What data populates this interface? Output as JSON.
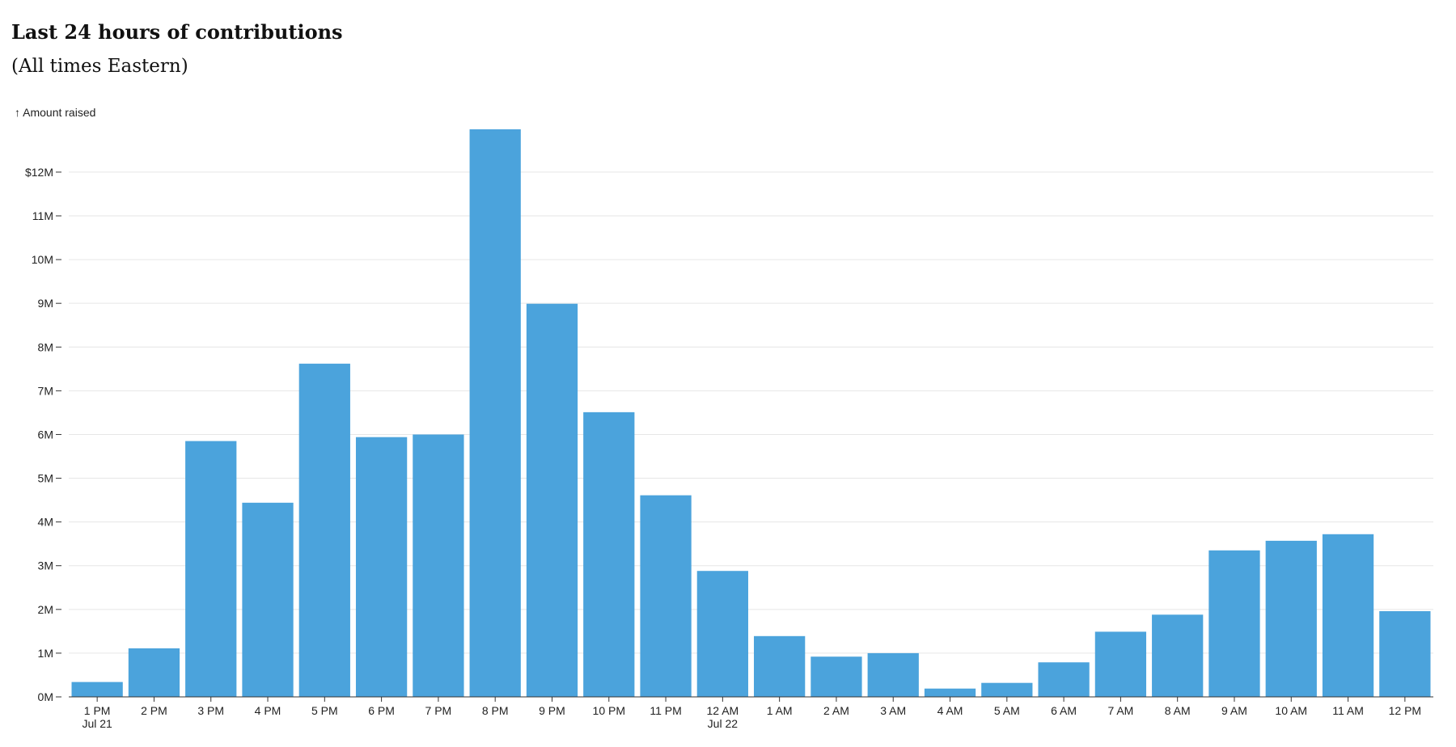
{
  "chart_data": {
    "type": "bar",
    "title": "Last 24 hours of contributions",
    "subtitle": "(All times Eastern)",
    "y_axis_label": "↑ Amount raised",
    "categories": [
      "1 PM",
      "2 PM",
      "3 PM",
      "4 PM",
      "5 PM",
      "6 PM",
      "7 PM",
      "8 PM",
      "9 PM",
      "10 PM",
      "11 PM",
      "12 AM",
      "1 AM",
      "2 AM",
      "3 AM",
      "4 AM",
      "5 AM",
      "6 AM",
      "7 AM",
      "8 AM",
      "9 AM",
      "10 AM",
      "11 AM",
      "12 PM"
    ],
    "category_date_labels": [
      "Jul 21",
      null,
      null,
      null,
      null,
      null,
      null,
      null,
      null,
      null,
      null,
      "Jul 22",
      null,
      null,
      null,
      null,
      null,
      null,
      null,
      null,
      null,
      null,
      null,
      null
    ],
    "values": [
      340000,
      1110000,
      5850000,
      4440000,
      7620000,
      5940000,
      6000000,
      12980000,
      8990000,
      6510000,
      4610000,
      2880000,
      1390000,
      920000,
      1000000,
      190000,
      320000,
      790000,
      1490000,
      1880000,
      3350000,
      3570000,
      3720000,
      1960000
    ],
    "color": "#4ba3dc",
    "ylim": [
      0,
      13200000
    ],
    "yticks": [
      {
        "value": 0,
        "label": "0M"
      },
      {
        "value": 1000000,
        "label": "1M"
      },
      {
        "value": 2000000,
        "label": "2M"
      },
      {
        "value": 3000000,
        "label": "3M"
      },
      {
        "value": 4000000,
        "label": "4M"
      },
      {
        "value": 5000000,
        "label": "5M"
      },
      {
        "value": 6000000,
        "label": "6M"
      },
      {
        "value": 7000000,
        "label": "7M"
      },
      {
        "value": 8000000,
        "label": "8M"
      },
      {
        "value": 9000000,
        "label": "9M"
      },
      {
        "value": 10000000,
        "label": "10M"
      },
      {
        "value": 11000000,
        "label": "11M"
      },
      {
        "value": 12000000,
        "label": "$12M"
      }
    ],
    "grid": true
  }
}
